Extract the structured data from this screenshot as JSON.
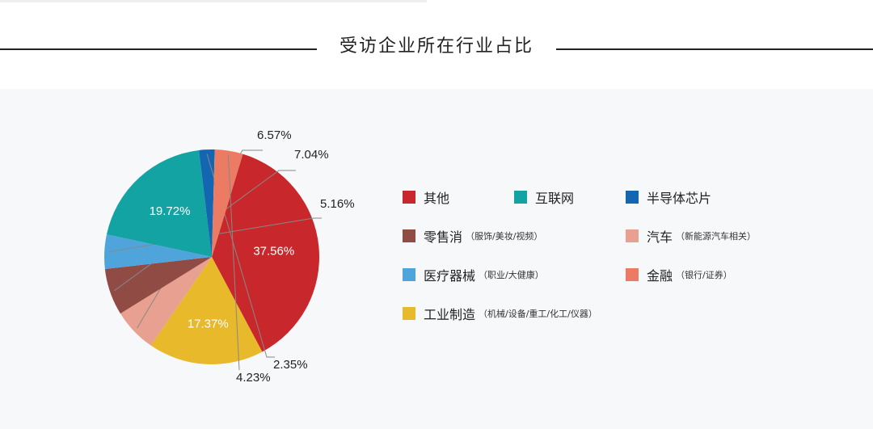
{
  "header": {
    "title": "受访企业所在行业占比"
  },
  "chart_data": {
    "type": "pie",
    "title": "受访企业所在行业占比",
    "slices": [
      {
        "label": "其他",
        "note": "",
        "value": 37.56,
        "value_label": "37.56%",
        "color": "#c8282b"
      },
      {
        "label": "互联网",
        "note": "",
        "value": 19.72,
        "value_label": "19.72%",
        "color": "#14a3a3"
      },
      {
        "label": "半导体芯片",
        "note": "",
        "value": 2.35,
        "value_label": "2.35%",
        "color": "#1466b0"
      },
      {
        "label": "零售消",
        "note": "（服饰/美妆/视频）",
        "value": 7.04,
        "value_label": "7.04%",
        "color": "#8f4b44"
      },
      {
        "label": "汽车",
        "note": "（新能源汽车相关）",
        "value": 6.57,
        "value_label": "6.57%",
        "color": "#e8a090"
      },
      {
        "label": "医疗器械",
        "note": "（职业/大健康）",
        "value": 5.16,
        "value_label": "5.16%",
        "color": "#4fa4dc"
      },
      {
        "label": "金融",
        "note": "（银行/证券）",
        "value": 4.23,
        "value_label": "4.23%",
        "color": "#ec7b64"
      },
      {
        "label": "工业制造",
        "note": "（机械/设备/重工/化工/仪器）",
        "value": 17.37,
        "value_label": "17.37%",
        "color": "#e8b92b"
      }
    ],
    "pie_order": [
      "其他",
      "工业制造",
      "汽车",
      "零售消",
      "医疗器械",
      "互联网",
      "半导体芯片",
      "金融"
    ],
    "legend_position": "right"
  }
}
